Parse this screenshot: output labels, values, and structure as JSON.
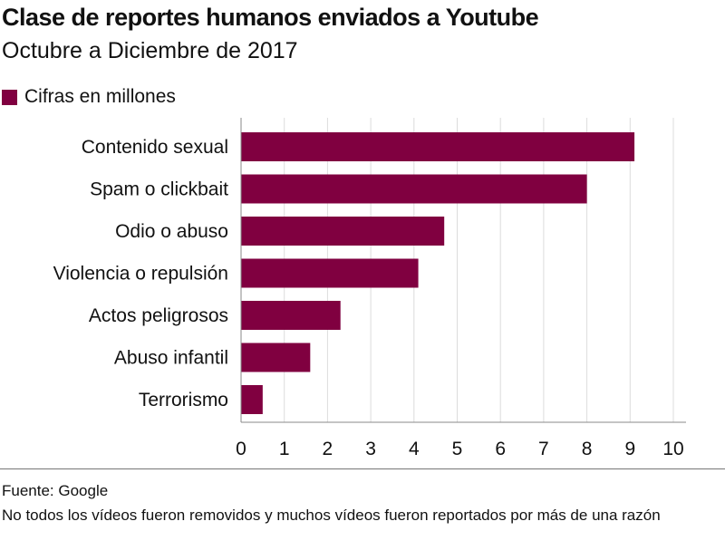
{
  "title": "Clase de reportes humanos enviados a Youtube",
  "subtitle": "Octubre a Diciembre de 2017",
  "footer": {
    "source": "Fuente: Google",
    "note": "No todos los vídeos fueron removidos y muchos vídeos fueron reportados por más de una razón"
  },
  "colors": {
    "bar": "#800040",
    "grid": "#dcdcdc",
    "axis": "#888888"
  },
  "chart_data": {
    "type": "bar",
    "orientation": "horizontal",
    "categories": [
      "Contenido sexual",
      "Spam o clickbait",
      "Odio o abuso",
      "Violencia o repulsión",
      "Actos peligrosos",
      "Abuso infantil",
      "Terrorismo"
    ],
    "series": [
      {
        "name": "Cifras en millones",
        "values": [
          9.1,
          8.0,
          4.7,
          4.1,
          2.3,
          1.6,
          0.5
        ]
      }
    ],
    "xlim": [
      0,
      10
    ],
    "xticks": [
      "0",
      "1",
      "2",
      "3",
      "4",
      "5",
      "6",
      "7",
      "8",
      "9",
      "10"
    ],
    "grid": true,
    "legend": "top-left"
  }
}
